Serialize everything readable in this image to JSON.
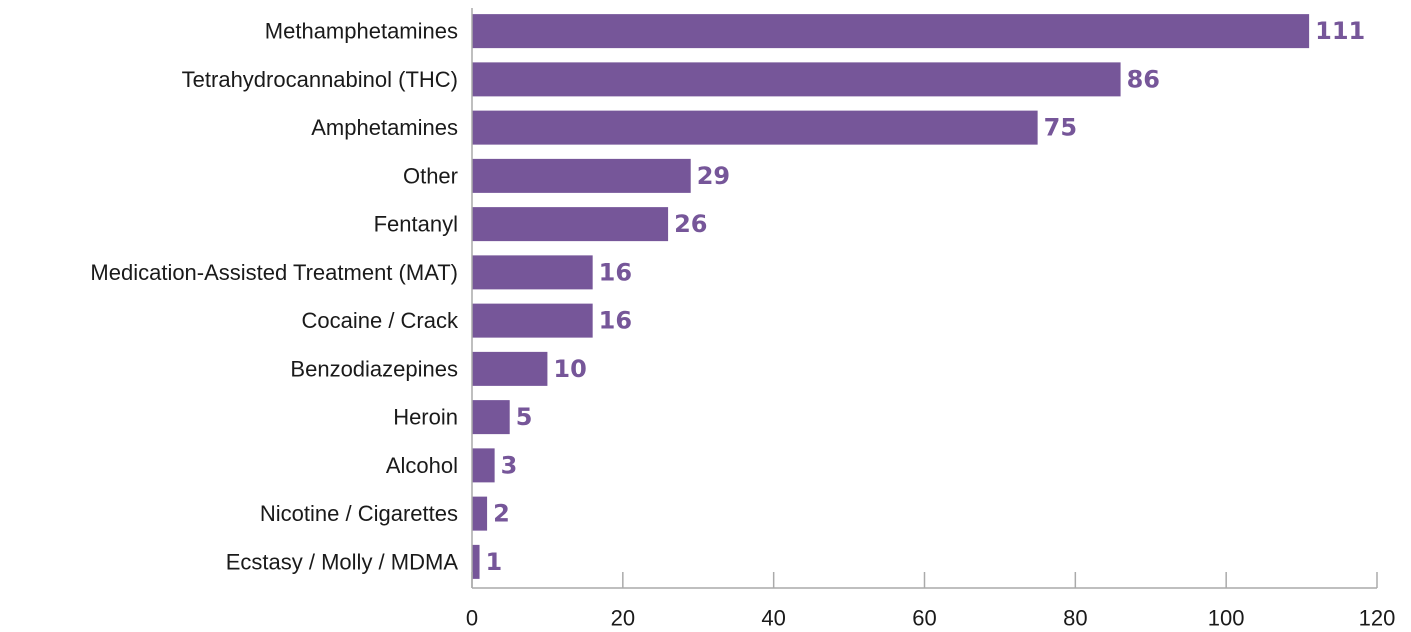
{
  "chart_data": {
    "type": "bar",
    "orientation": "horizontal",
    "categories": [
      "Methamphetamines",
      "Tetrahydrocannabinol (THC)",
      "Amphetamines",
      "Other",
      "Fentanyl",
      "Medication-Assisted Treatment (MAT)",
      "Cocaine / Crack",
      "Benzodiazepines",
      "Heroin",
      "Alcohol",
      "Nicotine / Cigarettes",
      "Ecstasy / Molly / MDMA"
    ],
    "values": [
      111,
      86,
      75,
      29,
      26,
      16,
      16,
      10,
      5,
      3,
      2,
      1
    ],
    "data_labels": [
      "111",
      "86",
      "75",
      "29",
      "26",
      "16",
      "16",
      "10",
      "5",
      "3",
      "2",
      "1"
    ],
    "xlim": [
      0,
      120
    ],
    "ticks": [
      0,
      20,
      40,
      60,
      80,
      100,
      120
    ],
    "tick_labels": [
      "0",
      "20",
      "40",
      "60",
      "80",
      "100",
      "120"
    ],
    "grid": false,
    "bar_color": "#765699",
    "label_color": "#765699",
    "axis_color": "#aaaaaa"
  }
}
